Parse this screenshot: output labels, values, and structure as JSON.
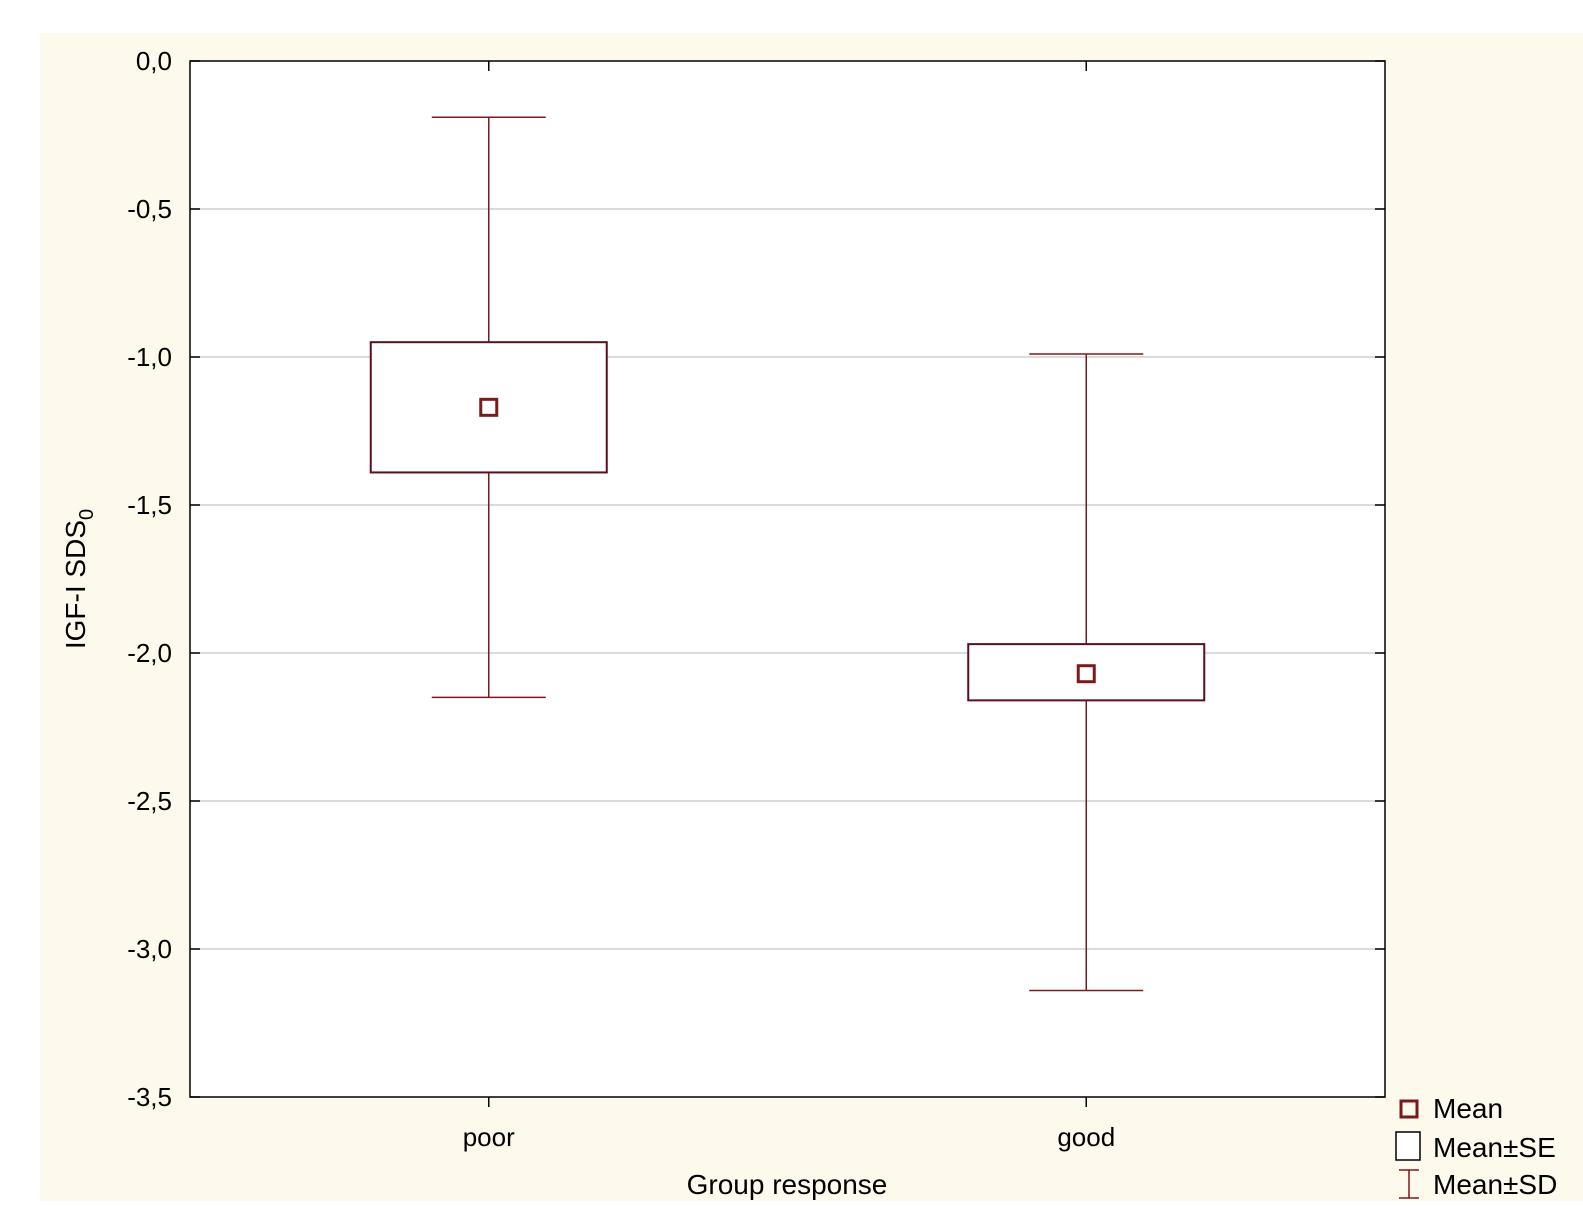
{
  "chart_data": {
    "type": "box",
    "title": "",
    "xlabel": "Group response",
    "ylabel": "IGF-I SDS",
    "ylabel_subscript": "0",
    "categories": [
      "poor",
      "good"
    ],
    "ylim": [
      -3.5,
      0.0
    ],
    "yticks": [
      0.0,
      -0.5,
      -1.0,
      -1.5,
      -2.0,
      -2.5,
      -3.0,
      -3.5
    ],
    "ytick_labels": [
      "0,0",
      "-0,5",
      "-1,0",
      "-1,5",
      "-2,0",
      "-2,5",
      "-3,0",
      "-3,5"
    ],
    "grid": true,
    "series": [
      {
        "category": "poor",
        "mean": -1.17,
        "se_low": -1.39,
        "se_high": -0.95,
        "sd_low": -2.15,
        "sd_high": -0.19
      },
      {
        "category": "good",
        "mean": -2.07,
        "se_low": -2.16,
        "se_high": -1.97,
        "sd_low": -3.14,
        "sd_high": -0.99
      }
    ],
    "legend": {
      "placement": "bottom-right",
      "items": [
        "Mean",
        "Mean±SE",
        "Mean±SD"
      ]
    },
    "colors": {
      "mark": "#7b1a1a",
      "box": "#5a0f1a",
      "grid": "#cfcfcf",
      "background": "#fdf9ec",
      "plot_background": "#ffffff"
    }
  }
}
